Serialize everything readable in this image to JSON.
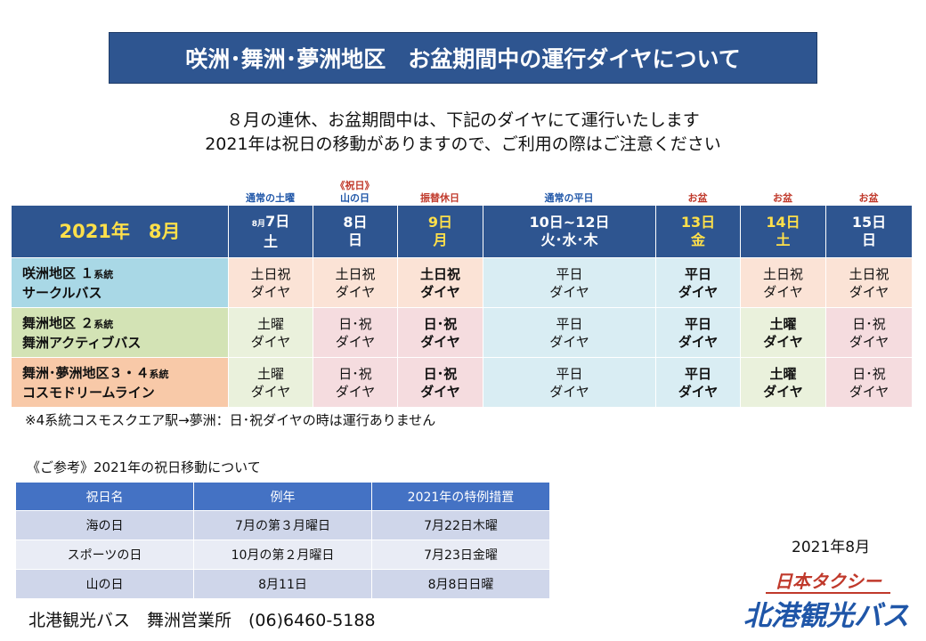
{
  "title": "咲洲･舞洲･夢洲地区　お盆期間中の運行ダイヤについて",
  "intro": {
    "line1": "８月の連休、お盆期間中は、下記のダイヤにて運行いたします",
    "line2": "2021年は祝日の移動がありますので、ご利用の際はご注意ください"
  },
  "column_notes": [
    {
      "line1": "",
      "line2": "通常の土曜"
    },
    {
      "line1": "《祝日》",
      "line2": "山の日"
    },
    {
      "line1": "",
      "line2": "振替休日"
    },
    {
      "line1": "",
      "line2": "通常の平日"
    },
    {
      "line1": "",
      "line2": "お盆"
    },
    {
      "line1": "",
      "line2": "お盆"
    },
    {
      "line1": "",
      "line2": "お盆"
    }
  ],
  "schedule": {
    "year_month": "2021年　8月",
    "columns": [
      {
        "prefix": "8月",
        "date": "7日",
        "day": "土"
      },
      {
        "prefix": "",
        "date": "8日",
        "day": "日"
      },
      {
        "prefix": "",
        "date": "9日",
        "day": "月"
      },
      {
        "prefix": "",
        "date": "10日~12日",
        "day": "火･水･木"
      },
      {
        "prefix": "",
        "date": "13日",
        "day": "金"
      },
      {
        "prefix": "",
        "date": "14日",
        "day": "土"
      },
      {
        "prefix": "",
        "date": "15日",
        "day": "日"
      }
    ],
    "rows": [
      {
        "area": "咲洲地区",
        "line_no": "１",
        "line_unit": "系統",
        "line_name": "サークルバス",
        "cells": [
          {
            "l1": "土日祝",
            "l2": "ダイヤ"
          },
          {
            "l1": "土日祝",
            "l2": "ダイヤ"
          },
          {
            "l1": "土日祝",
            "l2": "ダイヤ"
          },
          {
            "l1": "平日",
            "l2": "ダイヤ"
          },
          {
            "l1": "平日",
            "l2": "ダイヤ"
          },
          {
            "l1": "土日祝",
            "l2": "ダイヤ"
          },
          {
            "l1": "土日祝",
            "l2": "ダイヤ"
          }
        ]
      },
      {
        "area": "舞洲地区",
        "line_no": "２",
        "line_unit": "系統",
        "line_name": "舞洲アクティブバス",
        "cells": [
          {
            "l1": "土曜",
            "l2": "ダイヤ"
          },
          {
            "l1": "日･祝",
            "l2": "ダイヤ"
          },
          {
            "l1": "日･祝",
            "l2": "ダイヤ"
          },
          {
            "l1": "平日",
            "l2": "ダイヤ"
          },
          {
            "l1": "平日",
            "l2": "ダイヤ"
          },
          {
            "l1": "土曜",
            "l2": "ダイヤ"
          },
          {
            "l1": "日･祝",
            "l2": "ダイヤ"
          }
        ]
      },
      {
        "area": "舞洲･夢洲地区",
        "line_no": "３・４",
        "line_unit": "系統",
        "line_name": "コスモドリームライン",
        "cells": [
          {
            "l1": "土曜",
            "l2": "ダイヤ"
          },
          {
            "l1": "日･祝",
            "l2": "ダイヤ"
          },
          {
            "l1": "日･祝",
            "l2": "ダイヤ"
          },
          {
            "l1": "平日",
            "l2": "ダイヤ"
          },
          {
            "l1": "平日",
            "l2": "ダイヤ"
          },
          {
            "l1": "土曜",
            "l2": "ダイヤ"
          },
          {
            "l1": "日･祝",
            "l2": "ダイヤ"
          }
        ]
      }
    ]
  },
  "note": "※4系統コスモスクエア駅→夢洲：日･祝ダイヤの時は運行ありません",
  "reference": {
    "title": "《ご参考》2021年の祝日移動について",
    "headers": [
      "祝日名",
      "例年",
      "2021年の特例措置"
    ],
    "rows": [
      [
        "海の日",
        "7月の第３月曜日",
        "7月22日木曜"
      ],
      [
        "スポーツの日",
        "10月の第２月曜日",
        "7月23日金曜"
      ],
      [
        "山の日",
        "8月11日",
        "8月8日日曜"
      ]
    ]
  },
  "footer": "北港観光バス　舞洲営業所　(06)6460-5188",
  "date": "2021年8月",
  "logo": {
    "line1": "日本タクシー",
    "line2": "北港観光バス"
  }
}
